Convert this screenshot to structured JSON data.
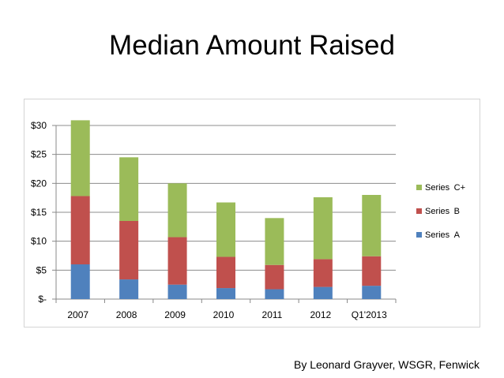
{
  "slide": {
    "title": "Median Amount Raised",
    "credit": "By Leonard Grayver, WSGR, Fenwick"
  },
  "chart_data": {
    "type": "bar",
    "stacked": true,
    "title": "",
    "xlabel": "",
    "ylabel": "",
    "categories": [
      "2007",
      "2008",
      "2009",
      "2010",
      "2011",
      "2012",
      "Q1'2013"
    ],
    "category_labels": [
      "2007 ",
      "2008 ",
      "2009 ",
      "2010 ",
      "2011 ",
      "2012 ",
      "Q1'2013 "
    ],
    "ylim": [
      0,
      30
    ],
    "yticks": [
      0,
      5,
      10,
      15,
      20,
      25,
      30
    ],
    "ytick_labels": [
      "$- ",
      "$5 ",
      "$10 ",
      "$15 ",
      "$20 ",
      "$25 ",
      "$30 "
    ],
    "grid": true,
    "legend_position": "right",
    "series": [
      {
        "name": "Series A",
        "label": "Series A ",
        "color": "#4f81bd",
        "values": [
          6.0,
          3.4,
          2.5,
          1.9,
          1.7,
          2.1,
          2.3
        ]
      },
      {
        "name": "Series B",
        "label": "Series B ",
        "color": "#c0504d",
        "values": [
          11.8,
          10.1,
          8.2,
          5.4,
          4.2,
          4.8,
          5.1
        ]
      },
      {
        "name": "Series C+",
        "label": "Series C+ ",
        "color": "#9bbb59",
        "values": [
          13.1,
          11.0,
          9.3,
          9.4,
          8.1,
          10.7,
          10.6
        ]
      }
    ]
  }
}
